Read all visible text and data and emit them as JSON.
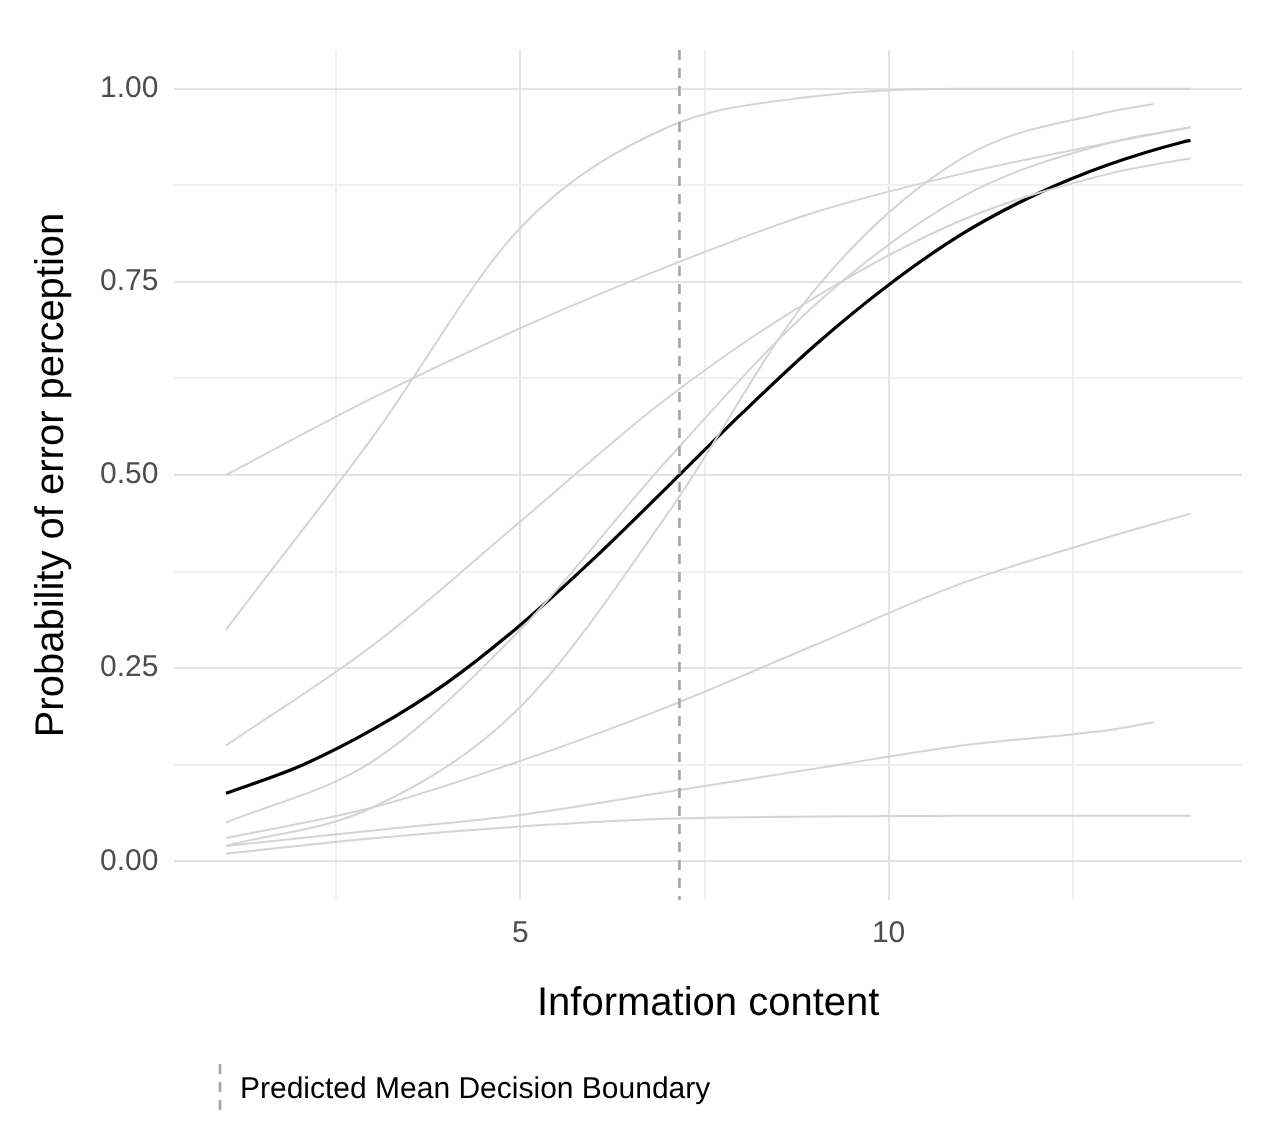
{
  "chart_data": {
    "type": "line",
    "xlabel": "Information content",
    "ylabel": "Probability of error perception",
    "xlim": [
      0.3,
      14.8
    ],
    "ylim": [
      -0.05,
      1.05
    ],
    "xticks": [
      {
        "value": 2.5,
        "label": null
      },
      5,
      {
        "value": 7.5,
        "label": null
      },
      10,
      {
        "value": 12.5,
        "label": null
      }
    ],
    "yticks": [
      {
        "value": 0,
        "label": "0.00"
      },
      {
        "value": 0.125,
        "label": null
      },
      {
        "value": 0.25,
        "label": "0.25"
      },
      {
        "value": 0.375,
        "label": null
      },
      {
        "value": 0.5,
        "label": "0.50"
      },
      {
        "value": 0.625,
        "label": null
      },
      {
        "value": 0.75,
        "label": "0.75"
      },
      {
        "value": 0.875,
        "label": null
      },
      {
        "value": 1,
        "label": "1.00"
      }
    ],
    "grid": true,
    "legend": "bottom",
    "marker": "none",
    "line_style": "solid",
    "ref_lines": [
      {
        "axis": "x",
        "value": 7.16,
        "label": "Predicted Mean Decision Boundary",
        "color": "#a6a6a6",
        "line_style": "dashed"
      }
    ],
    "series": [
      {
        "type": "line",
        "color": "#d4d4d4",
        "x": [
          1,
          3,
          5,
          7,
          9,
          11,
          13,
          14.1
        ],
        "values": [
          0.3,
          0.55,
          0.82,
          0.95,
          0.99,
          1,
          1,
          1
        ]
      },
      {
        "type": "line",
        "color": "#d4d4d4",
        "x": [
          1,
          3,
          5,
          7,
          9,
          11,
          13,
          14.1
        ],
        "values": [
          0.5,
          0.6,
          0.69,
          0.77,
          0.84,
          0.89,
          0.93,
          0.95
        ]
      },
      {
        "type": "line",
        "color": "#d4d4d4",
        "x": [
          1,
          3,
          5,
          7,
          9,
          11,
          13,
          13.6
        ],
        "values": [
          0.02,
          0.04,
          0.06,
          0.09,
          0.12,
          0.15,
          0.17,
          0.18
        ]
      },
      {
        "type": "line",
        "color": "#d4d4d4",
        "x": [
          1,
          3,
          5,
          7,
          9,
          11,
          13,
          14.1
        ],
        "values": [
          0.01,
          0.03,
          0.045,
          0.055,
          0.058,
          0.059,
          0.059,
          0.059
        ]
      },
      {
        "type": "line",
        "color": "#d4d4d4",
        "x": [
          1,
          3,
          5,
          7,
          9,
          11,
          13,
          14.1
        ],
        "values": [
          0.03,
          0.07,
          0.13,
          0.2,
          0.28,
          0.36,
          0.42,
          0.45
        ]
      },
      {
        "type": "line",
        "color": "#d4d4d4",
        "x": [
          1,
          3,
          5,
          7,
          9,
          11,
          13,
          14.1
        ],
        "values": [
          0.15,
          0.28,
          0.44,
          0.6,
          0.73,
          0.83,
          0.89,
          0.91
        ]
      },
      {
        "type": "line",
        "color": "#d4d4d4",
        "x": [
          1,
          3,
          5,
          7,
          9,
          11,
          13,
          14.1
        ],
        "values": [
          0.05,
          0.13,
          0.3,
          0.52,
          0.72,
          0.86,
          0.93,
          0.95
        ]
      },
      {
        "type": "line",
        "color": "#d4d4d4",
        "x": [
          1,
          3,
          5,
          7,
          9,
          11,
          13,
          13.6
        ],
        "values": [
          0.02,
          0.07,
          0.2,
          0.45,
          0.74,
          0.91,
          0.97,
          0.98
        ]
      },
      {
        "type": "line",
        "color": "#000000",
        "x": [
          1,
          2,
          3,
          4,
          5,
          6,
          7,
          8,
          9,
          10,
          11,
          12,
          13,
          14,
          14.1
        ],
        "values": [
          0.088,
          0.123,
          0.171,
          0.231,
          0.306,
          0.392,
          0.485,
          0.579,
          0.668,
          0.746,
          0.812,
          0.863,
          0.902,
          0.931,
          0.933
        ]
      }
    ]
  }
}
